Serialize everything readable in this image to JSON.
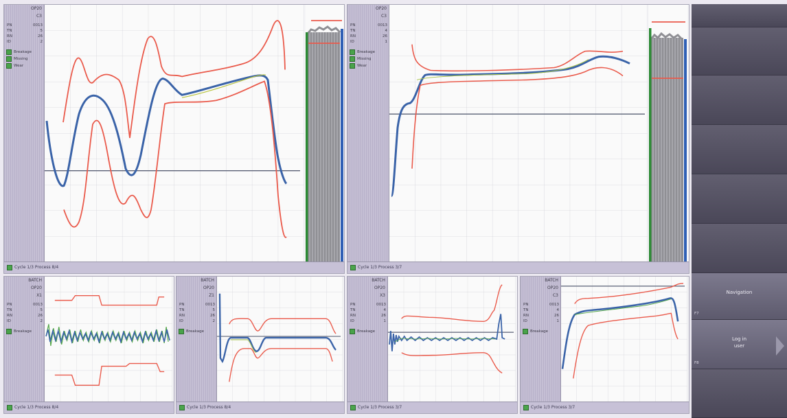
{
  "panels": {
    "top_left": {
      "header": [
        "OP20",
        "C3"
      ],
      "stats": [
        [
          "PN",
          "0013"
        ],
        [
          "TN",
          "5"
        ],
        [
          "RN",
          "26"
        ],
        [
          "ID",
          "2"
        ]
      ],
      "legend": [
        "Breakage",
        "Missing",
        "Wear"
      ],
      "caption": "Cycle 1/3 Process 8/4"
    },
    "top_right": {
      "header": [
        "OP20",
        "C3"
      ],
      "stats": [
        [
          "PN",
          "0013"
        ],
        [
          "TN",
          "4"
        ],
        [
          "RN",
          "26"
        ],
        [
          "ID",
          "1"
        ]
      ],
      "legend": [
        "Breakage",
        "Missing",
        "Wear"
      ],
      "caption": "Cycle 1/3 Process 3/7"
    },
    "bottom_1": {
      "header": [
        "BATCH",
        "OP20",
        "X1"
      ],
      "stats": [
        [
          "PN",
          "0013"
        ],
        [
          "TN",
          "5"
        ],
        [
          "RN",
          "26"
        ],
        [
          "ID",
          "2"
        ]
      ],
      "legend": [
        "Breakage"
      ],
      "caption": "Cycle 1/3 Process 8/4"
    },
    "bottom_2": {
      "header": [
        "BATCH",
        "OP20",
        "Z1"
      ],
      "stats": [
        [
          "PN",
          "0013"
        ],
        [
          "TN",
          "5"
        ],
        [
          "RN",
          "26"
        ],
        [
          "ID",
          "2"
        ]
      ],
      "legend": [
        "Breakage"
      ],
      "caption": "Cycle 1/3 Process 8/4"
    },
    "bottom_3": {
      "header": [
        "BATCH",
        "OP20",
        "X3"
      ],
      "stats": [
        [
          "PN",
          "0013"
        ],
        [
          "TN",
          "4"
        ],
        [
          "RN",
          "26"
        ],
        [
          "ID",
          "1"
        ]
      ],
      "legend": [
        "Breakage"
      ],
      "caption": "Cycle 1/3 Process 3/7"
    },
    "bottom_4": {
      "header": [
        "BATCH",
        "OP20",
        "C3"
      ],
      "stats": [
        [
          "PN",
          "0013"
        ],
        [
          "TN",
          "4"
        ],
        [
          "RN",
          "26"
        ],
        [
          "ID",
          "1"
        ]
      ],
      "legend": [
        "Breakage"
      ],
      "caption": "Cycle 1/3 Process 3/7"
    }
  },
  "sidebar": {
    "navigation_label": "Navigation",
    "navigation_key": "F7",
    "login_label_line1": "Log in",
    "login_label_line2": "user",
    "login_key": "F8"
  },
  "colors": {
    "signal": "#3a63a8",
    "limit": "#ea5a4b",
    "reference": "#596075",
    "bar_green": "#2c8a35",
    "bar_blue": "#2f5fb5",
    "legend_green": "#49a34a"
  }
}
